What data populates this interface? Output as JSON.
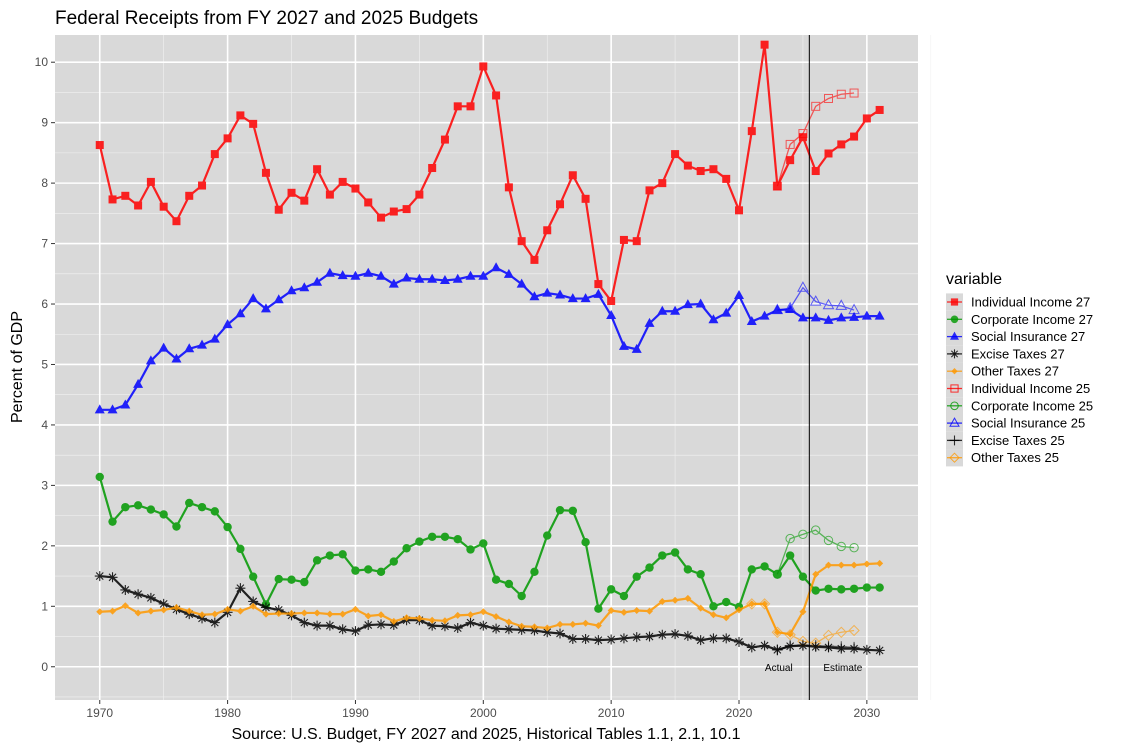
{
  "chart_data": {
    "type": "line",
    "title": "Federal Receipts from FY 2027 and 2025 Budgets",
    "xlabel": "Source: U.S. Budget, FY 2027 and 2025, Historical Tables 1.1, 2.1, 10.1",
    "ylabel": "Percent of GDP",
    "xlim": [
      1966.5,
      2034
    ],
    "ylim": [
      -0.55,
      10.45
    ],
    "xticks": [
      1970,
      1980,
      1990,
      2000,
      2010,
      2020,
      2030
    ],
    "yticks": [
      0,
      1,
      2,
      3,
      4,
      5,
      6,
      7,
      8,
      9,
      10
    ],
    "grid": true,
    "legend_title": "variable",
    "legend_position": "right",
    "divider_x": 2025.5,
    "annotations": [
      {
        "text": "Actual",
        "x": 2024.2,
        "y": 0,
        "anchor": "end"
      },
      {
        "text": "Estimate",
        "x": 2026.6,
        "y": 0,
        "anchor": "start"
      }
    ],
    "series": [
      {
        "name": "Individual Income 27",
        "color": "#ff0000",
        "marker": "square-filled",
        "start": 1970,
        "values": [
          8.63,
          7.73,
          7.79,
          7.63,
          8.02,
          7.61,
          7.37,
          7.79,
          7.96,
          8.48,
          8.74,
          9.12,
          8.98,
          8.17,
          7.56,
          7.84,
          7.71,
          8.23,
          7.81,
          8.02,
          7.91,
          7.68,
          7.43,
          7.53,
          7.57,
          7.81,
          8.25,
          8.72,
          9.27,
          9.27,
          9.93,
          9.45,
          7.93,
          7.04,
          6.73,
          7.22,
          7.65,
          8.13,
          7.74,
          6.33,
          6.05,
          7.06,
          7.04,
          7.88,
          8.0,
          8.48,
          8.29,
          8.2,
          8.23,
          8.07,
          7.55,
          8.86,
          10.29,
          7.95,
          8.38,
          8.76,
          8.2,
          8.49,
          8.64,
          8.77,
          9.07,
          9.21
        ]
      },
      {
        "name": "Corporate Income 27",
        "color": "#009900",
        "marker": "circle-filled",
        "start": 1970,
        "values": [
          3.14,
          2.4,
          2.64,
          2.67,
          2.6,
          2.52,
          2.32,
          2.71,
          2.64,
          2.57,
          2.31,
          1.95,
          1.49,
          1.03,
          1.45,
          1.44,
          1.4,
          1.76,
          1.84,
          1.86,
          1.59,
          1.61,
          1.57,
          1.74,
          1.96,
          2.07,
          2.15,
          2.15,
          2.11,
          1.94,
          2.04,
          1.44,
          1.37,
          1.17,
          1.57,
          2.17,
          2.59,
          2.58,
          2.06,
          0.96,
          1.28,
          1.17,
          1.49,
          1.64,
          1.84,
          1.89,
          1.61,
          1.53,
          1.0,
          1.07,
          0.99,
          1.61,
          1.66,
          1.53,
          1.84,
          1.49,
          1.26,
          1.29,
          1.28,
          1.29,
          1.31,
          1.31
        ]
      },
      {
        "name": "Social Insurance 27",
        "color": "#0000ff",
        "marker": "triangle-filled",
        "start": 1970,
        "values": [
          4.25,
          4.25,
          4.33,
          4.67,
          5.06,
          5.27,
          5.09,
          5.26,
          5.32,
          5.42,
          5.66,
          5.84,
          6.09,
          5.92,
          6.07,
          6.22,
          6.27,
          6.36,
          6.51,
          6.47,
          6.46,
          6.51,
          6.46,
          6.33,
          6.43,
          6.41,
          6.41,
          6.39,
          6.41,
          6.46,
          6.46,
          6.6,
          6.49,
          6.33,
          6.12,
          6.18,
          6.15,
          6.09,
          6.09,
          6.16,
          5.81,
          5.3,
          5.25,
          5.68,
          5.88,
          5.88,
          5.99,
          6.0,
          5.74,
          5.85,
          6.14,
          5.71,
          5.8,
          5.9,
          5.91,
          5.77,
          5.77,
          5.73,
          5.77,
          5.78,
          5.8,
          5.8
        ]
      },
      {
        "name": "Excise Taxes 27",
        "color": "#000000",
        "marker": "asterisk",
        "start": 1970,
        "values": [
          1.5,
          1.48,
          1.27,
          1.2,
          1.14,
          1.04,
          0.95,
          0.87,
          0.8,
          0.73,
          0.9,
          1.3,
          1.08,
          0.98,
          0.94,
          0.85,
          0.73,
          0.68,
          0.68,
          0.62,
          0.59,
          0.69,
          0.7,
          0.69,
          0.77,
          0.77,
          0.68,
          0.67,
          0.64,
          0.73,
          0.68,
          0.63,
          0.62,
          0.61,
          0.6,
          0.57,
          0.55,
          0.46,
          0.46,
          0.44,
          0.45,
          0.47,
          0.49,
          0.5,
          0.53,
          0.54,
          0.51,
          0.44,
          0.47,
          0.47,
          0.41,
          0.32,
          0.35,
          0.28,
          0.34,
          0.35,
          0.33,
          0.32,
          0.3,
          0.3,
          0.28,
          0.27
        ]
      },
      {
        "name": "Other Taxes 27",
        "color": "#ff9900",
        "marker": "diamond-filled",
        "start": 1970,
        "values": [
          0.91,
          0.92,
          1.01,
          0.89,
          0.92,
          0.94,
          0.98,
          0.92,
          0.86,
          0.87,
          0.95,
          0.92,
          1.0,
          0.87,
          0.88,
          0.88,
          0.89,
          0.89,
          0.87,
          0.87,
          0.95,
          0.84,
          0.86,
          0.75,
          0.81,
          0.8,
          0.77,
          0.76,
          0.85,
          0.86,
          0.91,
          0.83,
          0.74,
          0.67,
          0.66,
          0.64,
          0.7,
          0.7,
          0.72,
          0.68,
          0.93,
          0.9,
          0.93,
          0.92,
          1.08,
          1.1,
          1.13,
          0.97,
          0.86,
          0.81,
          0.94,
          1.04,
          1.04,
          0.57,
          0.54,
          0.91,
          1.53,
          1.68,
          1.68,
          1.68,
          1.7,
          1.71
        ]
      },
      {
        "name": "Individual Income 25",
        "color": "#ff0000",
        "marker": "square-open",
        "start": 2023,
        "values": [
          7.95,
          8.64,
          8.82,
          9.27,
          9.4,
          9.47,
          9.49
        ]
      },
      {
        "name": "Corporate Income 25",
        "color": "#009900",
        "marker": "circle-open",
        "start": 2023,
        "values": [
          1.53,
          2.12,
          2.19,
          2.26,
          2.09,
          1.99,
          1.97
        ]
      },
      {
        "name": "Social Insurance 25",
        "color": "#0000ff",
        "marker": "triangle-open",
        "start": 2023,
        "values": [
          5.9,
          5.93,
          6.27,
          6.04,
          5.98,
          5.97,
          5.9
        ]
      },
      {
        "name": "Excise Taxes 25",
        "color": "#000000",
        "marker": "plus",
        "start": 2023,
        "values": [
          0.28,
          0.35,
          0.36,
          0.35,
          0.34,
          0.33,
          0.32
        ]
      },
      {
        "name": "Other Taxes 25",
        "color": "#ff9900",
        "marker": "diamond-open",
        "start": 2021,
        "values": [
          1.04,
          1.04,
          0.57,
          0.53,
          0.42,
          0.39,
          0.52,
          0.57,
          0.6
        ]
      }
    ]
  }
}
